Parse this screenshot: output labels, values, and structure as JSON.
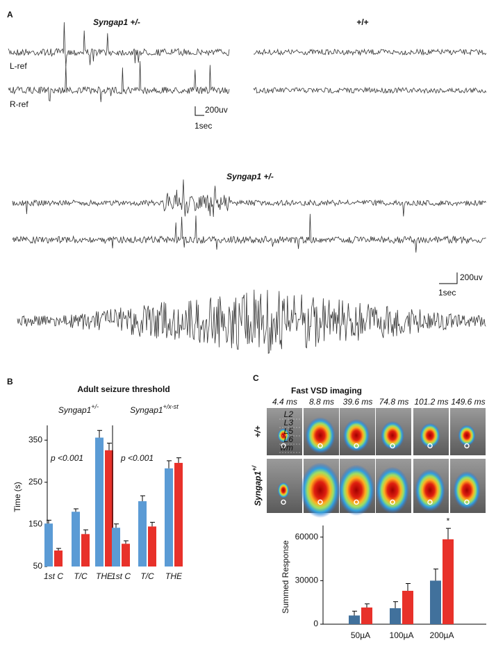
{
  "panel_labels": [
    "A",
    "B",
    "C"
  ],
  "eeg": {
    "top_left_title": "Syngap1 +/-",
    "top_right_title": "+/+",
    "channels": [
      "L-ref",
      "R-ref"
    ],
    "scale_top": {
      "amplitude": "200uv",
      "time": "1sec"
    },
    "bottom_title": "Syngap1 +/-",
    "scale_bottom": {
      "amplitude": "200uv",
      "time": "1sec"
    }
  },
  "imaging": {
    "times": [
      "4.4 ms",
      "8.8 ms",
      "39.6 ms",
      "74.8 ms",
      "101.2 ms",
      "149.6 ms"
    ],
    "rows": [
      {
        "text": "+/+"
      },
      {
        "text": "Syngap1",
        "sup": "+/"
      }
    ],
    "layers": [
      "L2",
      "L3",
      "L5",
      "L6",
      "wm"
    ]
  },
  "chart_data": [
    {
      "type": "bar",
      "title": "Adult seizure threshold",
      "subtitle": {
        "text": "Syngap1",
        "sup": "+/-"
      },
      "y_label": "Time (s)",
      "annotation": "p <0.001",
      "categories": [
        "1st C",
        "T/C",
        "THE"
      ],
      "series": [
        {
          "color": "#5b9bd5",
          "values": [
            152,
            180,
            356
          ],
          "errors": [
            8,
            7,
            17
          ]
        },
        {
          "color": "#e8312a",
          "values": [
            88,
            127,
            326
          ],
          "errors": [
            5,
            10,
            17
          ]
        }
      ],
      "ylim": [
        50,
        385
      ],
      "yticks": [
        50,
        150,
        250,
        350
      ]
    },
    {
      "type": "bar",
      "subtitle": {
        "text": "Syngap1",
        "sup": "+/x-st"
      },
      "annotation": "p <0.001",
      "categories": [
        "1st C",
        "T/C",
        "THE"
      ],
      "series": [
        {
          "color": "#5b9bd5",
          "values": [
            142,
            205,
            283
          ],
          "errors": [
            9,
            13,
            18
          ]
        },
        {
          "color": "#e8312a",
          "values": [
            104,
            145,
            296
          ],
          "errors": [
            7,
            10,
            12
          ]
        }
      ],
      "ylim": [
        50,
        385
      ]
    },
    {
      "type": "bar",
      "title": "Fast VSD imaging",
      "y_label": "Summed Response",
      "annotation": "*",
      "categories": [
        "50µA",
        "100µA",
        "200µA"
      ],
      "series": [
        {
          "color": "#41719c",
          "values": [
            6000,
            11000,
            30000
          ],
          "errors": [
            3000,
            4500,
            8000
          ]
        },
        {
          "color": "#e8312a",
          "values": [
            11500,
            23000,
            58500
          ],
          "errors": [
            2500,
            5000,
            7500
          ]
        }
      ],
      "ylim": [
        0,
        68000
      ],
      "yticks": [
        0,
        30000,
        60000
      ]
    }
  ]
}
